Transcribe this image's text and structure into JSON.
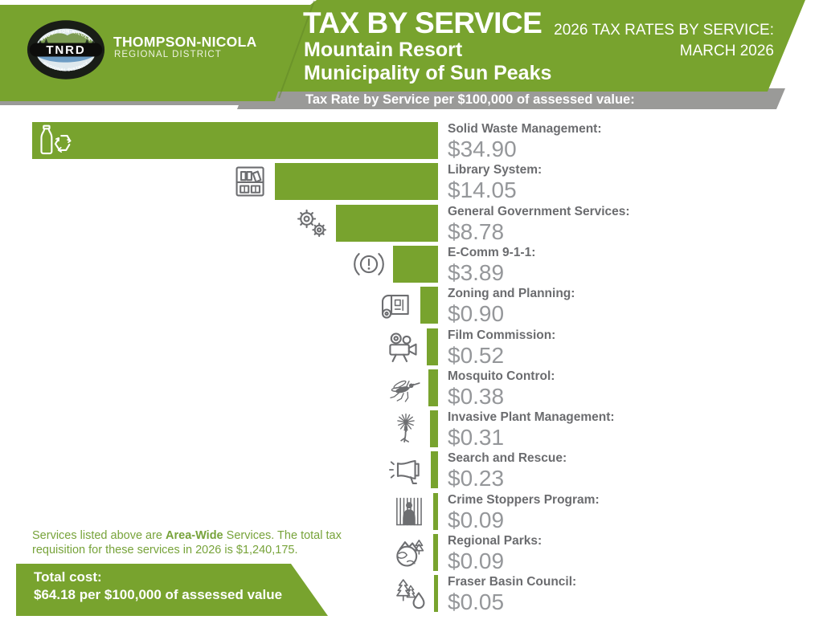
{
  "header": {
    "org_name": "THOMPSON-NICOLA",
    "org_subtitle": "REGIONAL DISTRICT",
    "logo_acronym": "TNRD",
    "logo_arc_top": "THOMPSON-NICOLA",
    "logo_arc_bottom": "REGIONAL DISTRICT",
    "title": "TAX BY SERVICE",
    "subtitle_line1": "Mountain Resort",
    "subtitle_line2": "Municipality of Sun Peaks",
    "right_line1": "2026 TAX RATES BY SERVICE:",
    "right_line2": "MARCH 2026",
    "band_text": "Tax Rate by Service per $100,000 of assessed value:"
  },
  "chart_data": {
    "type": "bar",
    "orientation": "horizontal",
    "title": "Tax Rate by Service per $100,000 of assessed value",
    "xlim": [
      0,
      34.9
    ],
    "bar_color": "#78a32e",
    "items": [
      {
        "label": "Solid Waste Management:",
        "value": 34.9,
        "value_label": "$34.90",
        "icon": "recycling-bottle-icon"
      },
      {
        "label": "Library System:",
        "value": 14.05,
        "value_label": "$14.05",
        "icon": "library-shelf-icon"
      },
      {
        "label": "General Government Services:",
        "value": 8.78,
        "value_label": "$8.78",
        "icon": "gears-icon"
      },
      {
        "label": "E-Comm 9-1-1:",
        "value": 3.89,
        "value_label": "$3.89",
        "icon": "emergency-alert-icon"
      },
      {
        "label": "Zoning and Planning:",
        "value": 0.9,
        "value_label": "$0.90",
        "icon": "blueprint-plan-icon"
      },
      {
        "label": "Film Commission:",
        "value": 0.52,
        "value_label": "$0.52",
        "icon": "film-camera-icon"
      },
      {
        "label": "Mosquito Control:",
        "value": 0.38,
        "value_label": "$0.38",
        "icon": "mosquito-icon"
      },
      {
        "label": "Invasive Plant Management:",
        "value": 0.31,
        "value_label": "$0.31",
        "icon": "invasive-plant-icon"
      },
      {
        "label": "Search and Rescue:",
        "value": 0.23,
        "value_label": "$0.23",
        "icon": "megaphone-icon"
      },
      {
        "label": "Crime Stoppers Program:",
        "value": 0.09,
        "value_label": "$0.09",
        "icon": "prisoner-bars-icon"
      },
      {
        "label": "Regional Parks:",
        "value": 0.09,
        "value_label": "$0.09",
        "icon": "globe-parks-icon"
      },
      {
        "label": "Fraser Basin Council:",
        "value": 0.05,
        "value_label": "$0.05",
        "icon": "trees-waterdrop-icon"
      }
    ]
  },
  "footer": {
    "note_prefix": "Services listed above are ",
    "note_bold": "Area-Wide",
    "note_suffix": " Services. The total tax requisition for these services in 2026 is $1,240,175.",
    "total_label": "Total cost:",
    "total_value": "$64.18 per $100,000 of assessed value"
  },
  "colors": {
    "green": "#78a32e",
    "gray_band": "#9a9a98",
    "label_gray": "#6b6c6f",
    "value_gray": "#95979a",
    "note_green": "#77a33a"
  }
}
